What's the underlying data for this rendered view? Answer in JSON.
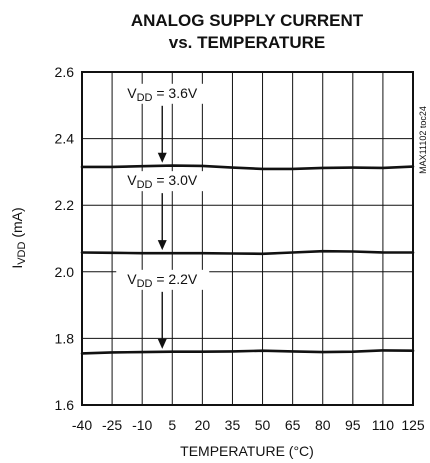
{
  "chart_data": {
    "type": "line",
    "title": [
      "ANALOG SUPPLY CURRENT",
      "vs. TEMPERATURE"
    ],
    "xlabel": "TEMPERATURE (°C)",
    "ylabel": {
      "main": "I",
      "sub": "VDD",
      "suffix": " (mA)"
    },
    "xlim": [
      -40,
      125
    ],
    "ylim": [
      1.6,
      2.6
    ],
    "xticks": [
      -40,
      -25,
      -10,
      5,
      20,
      35,
      50,
      65,
      80,
      95,
      110,
      125
    ],
    "yticks": [
      1.6,
      1.8,
      2.0,
      2.2,
      2.4,
      2.6
    ],
    "ytick_labels": [
      "1.6",
      "1.8",
      "2.0",
      "2.2",
      "2.4",
      "2.6"
    ],
    "grid": true,
    "series": [
      {
        "name": "VDD = 3.6V",
        "x": [
          -40,
          -25,
          -10,
          5,
          20,
          35,
          50,
          65,
          80,
          95,
          110,
          125
        ],
        "y": [
          2.315,
          2.315,
          2.317,
          2.319,
          2.318,
          2.313,
          2.309,
          2.309,
          2.312,
          2.313,
          2.312,
          2.316
        ]
      },
      {
        "name": "VDD = 3.0V",
        "x": [
          -40,
          -25,
          -10,
          5,
          20,
          35,
          50,
          65,
          80,
          95,
          110,
          125
        ],
        "y": [
          2.058,
          2.057,
          2.056,
          2.056,
          2.056,
          2.055,
          2.054,
          2.058,
          2.062,
          2.061,
          2.058,
          2.058
        ]
      },
      {
        "name": "VDD = 2.2V",
        "x": [
          -40,
          -25,
          -10,
          5,
          20,
          35,
          50,
          65,
          80,
          95,
          110,
          125
        ],
        "y": [
          1.755,
          1.758,
          1.759,
          1.76,
          1.76,
          1.761,
          1.763,
          1.761,
          1.759,
          1.76,
          1.764,
          1.763
        ]
      }
    ],
    "annotations": [
      {
        "main": "V",
        "sub": "DD",
        "rest": " = 3.6V",
        "arrow_x": 0
      },
      {
        "main": "V",
        "sub": "DD",
        "rest": " = 3.0V",
        "arrow_x": 0
      },
      {
        "main": "V",
        "sub": "DD",
        "rest": " = 2.2V",
        "arrow_x": 0
      }
    ],
    "side_code": "MAX11102 toc24"
  }
}
